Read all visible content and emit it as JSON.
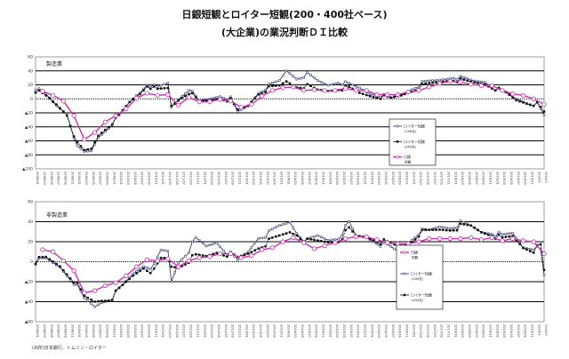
{
  "title_line1": "日銀短観とロイター短観(200・400社ベース)",
  "title_line2": "(大企業)の業況判断ＤＩ比較",
  "source": "(出所)日本銀行、トムソン・ロイター",
  "colors": {
    "reuters200": "#1c2a6b",
    "reuters400": "#111111",
    "tankan": "#cc33aa"
  },
  "x_ticks": [
    "2008/01",
    "2008/03",
    "2008/05",
    "2008/07",
    "2008/09",
    "2008/11",
    "2009/01",
    "2009/03",
    "2009/05",
    "2009/07",
    "2009/09",
    "2009/11",
    "2010/01",
    "2010/03",
    "2010/05",
    "2010/07",
    "2010/09",
    "2010/11",
    "2011/01",
    "2011/03",
    "2011/05",
    "2011/07",
    "2011/09",
    "2011/11",
    "2012/01",
    "2012/03",
    "2012/05",
    "2012/07",
    "2012/09",
    "2012/11",
    "2013/01",
    "2013/03",
    "2013/05",
    "2013/07",
    "2013/09",
    "2013/11",
    "2014/01",
    "2014/03",
    "2014/05",
    "2014/07",
    "2014/09",
    "2014/11",
    "2015/01",
    "2015/03",
    "2015/05",
    "2015/07",
    "2015/09",
    "2015/11",
    "2016/01",
    "2016/03",
    "2016/05",
    "2016/07",
    "2016/09",
    "2016/11",
    "2017/01",
    "2017/03",
    "2017/05",
    "2017/07",
    "2017/09",
    "2017/11",
    "2018/01",
    "2018/03",
    "2018/05",
    "2018/07",
    "2018/09",
    "2018/11",
    "2019/01",
    "2019/03",
    "2019/05",
    "2019/07",
    "2019/09",
    "2019/11",
    "2020/1",
    "2020/3"
  ],
  "chart_data": [
    {
      "type": "line",
      "panel_label": "製造業",
      "x_unit": "months since 2008/01",
      "ylim": [
        -100,
        60
      ],
      "y_ticks": [
        {
          "v": 60,
          "label": "60"
        },
        {
          "v": 40,
          "label": "40"
        },
        {
          "v": 20,
          "label": "20"
        },
        {
          "v": 0,
          "label": "0"
        },
        {
          "v": -20,
          "label": "▲20"
        },
        {
          "v": -40,
          "label": "▲40"
        },
        {
          "v": -60,
          "label": "▲60"
        },
        {
          "v": -80,
          "label": "▲80"
        },
        {
          "v": -100,
          "label": "▲100"
        }
      ],
      "legend": {
        "placement": "lower-right",
        "items": [
          "ロイター短観",
          "(200社)",
          "ロイター短観",
          "(400社)",
          "日銀",
          "短観"
        ]
      },
      "series": [
        {
          "name": "ロイター短観(200社)",
          "key": "reuters200",
          "points": [
            [
              0,
              15
            ],
            [
              3,
              5
            ],
            [
              6,
              -10
            ],
            [
              9,
              -20
            ],
            [
              12,
              -70
            ],
            [
              14,
              -77
            ],
            [
              16,
              -75
            ],
            [
              18,
              -55
            ],
            [
              21,
              -40
            ],
            [
              24,
              -25
            ],
            [
              27,
              -5
            ],
            [
              30,
              10
            ],
            [
              32,
              22
            ],
            [
              35,
              15
            ],
            [
              38,
              22
            ],
            [
              39,
              -12
            ],
            [
              42,
              5
            ],
            [
              44,
              15
            ],
            [
              47,
              -5
            ],
            [
              50,
              0
            ],
            [
              53,
              5
            ],
            [
              56,
              0
            ],
            [
              58,
              -20
            ],
            [
              61,
              -10
            ],
            [
              64,
              10
            ],
            [
              67,
              18
            ],
            [
              70,
              25
            ],
            [
              72,
              40
            ],
            [
              75,
              30
            ],
            [
              78,
              35
            ],
            [
              81,
              25
            ],
            [
              84,
              20
            ],
            [
              87,
              25
            ],
            [
              90,
              20
            ],
            [
              93,
              15
            ],
            [
              96,
              8
            ],
            [
              99,
              5
            ],
            [
              102,
              0
            ],
            [
              105,
              5
            ],
            [
              108,
              15
            ],
            [
              111,
              22
            ],
            [
              114,
              25
            ],
            [
              117,
              28
            ],
            [
              120,
              32
            ],
            [
              123,
              28
            ],
            [
              126,
              25
            ],
            [
              129,
              25
            ],
            [
              132,
              15
            ],
            [
              135,
              8
            ],
            [
              138,
              0
            ],
            [
              141,
              -5
            ],
            [
              144,
              -8
            ],
            [
              146,
              -25
            ]
          ]
        },
        {
          "name": "ロイター短観(400社)",
          "key": "reuters400",
          "points": [
            [
              0,
              12
            ],
            [
              3,
              3
            ],
            [
              6,
              -8
            ],
            [
              9,
              -22
            ],
            [
              12,
              -65
            ],
            [
              14,
              -75
            ],
            [
              16,
              -72
            ],
            [
              18,
              -52
            ],
            [
              21,
              -38
            ],
            [
              24,
              -25
            ],
            [
              27,
              -5
            ],
            [
              30,
              8
            ],
            [
              32,
              20
            ],
            [
              35,
              12
            ],
            [
              38,
              15
            ],
            [
              39,
              -10
            ],
            [
              42,
              3
            ],
            [
              44,
              10
            ],
            [
              47,
              -5
            ],
            [
              50,
              -2
            ],
            [
              53,
              2
            ],
            [
              56,
              -2
            ],
            [
              58,
              -17
            ],
            [
              61,
              -10
            ],
            [
              64,
              8
            ],
            [
              67,
              15
            ],
            [
              70,
              18
            ],
            [
              72,
              25
            ],
            [
              75,
              18
            ],
            [
              78,
              18
            ],
            [
              81,
              12
            ],
            [
              84,
              12
            ],
            [
              87,
              15
            ],
            [
              90,
              15
            ],
            [
              93,
              8
            ],
            [
              96,
              5
            ],
            [
              99,
              3
            ],
            [
              102,
              0
            ],
            [
              105,
              5
            ],
            [
              108,
              12
            ],
            [
              111,
              18
            ],
            [
              114,
              22
            ],
            [
              117,
              25
            ],
            [
              120,
              28
            ],
            [
              123,
              25
            ],
            [
              126,
              23
            ],
            [
              129,
              22
            ],
            [
              132,
              15
            ],
            [
              135,
              8
            ],
            [
              138,
              -2
            ],
            [
              141,
              -5
            ],
            [
              144,
              -8
            ],
            [
              146,
              -20
            ]
          ]
        },
        {
          "name": "日銀短観",
          "key": "tankan",
          "start_month": 2,
          "step_months": 3,
          "values": [
            11,
            5,
            -3,
            -24,
            -58,
            -48,
            -33,
            -24,
            -14,
            1,
            8,
            5,
            6,
            -9,
            2,
            -4,
            -4,
            -1,
            -3,
            -12,
            -8,
            4,
            12,
            16,
            17,
            12,
            13,
            12,
            12,
            15,
            12,
            12,
            6,
            6,
            6,
            10,
            12,
            17,
            22,
            25,
            24,
            21,
            19,
            19,
            12,
            7,
            5,
            0,
            -8
          ]
        }
      ]
    },
    {
      "type": "line",
      "panel_label": "非製造業",
      "x_unit": "months since 2008/01",
      "ylim": [
        -60,
        60
      ],
      "y_ticks": [
        {
          "v": 60,
          "label": "60"
        },
        {
          "v": 40,
          "label": "40"
        },
        {
          "v": 20,
          "label": "20"
        },
        {
          "v": 0,
          "label": "0"
        },
        {
          "v": -20,
          "label": "▲20"
        },
        {
          "v": -40,
          "label": "▲40"
        },
        {
          "v": -60,
          "label": "▲60"
        }
      ],
      "legend": {
        "placement": "lower-right",
        "items": [
          "日銀",
          "短観",
          "ロイター短観",
          "(200社)",
          "ロイター短観",
          "(400社)"
        ]
      },
      "series": [
        {
          "name": "ロイター短観(200社)",
          "key": "reuters200",
          "points": [
            [
              0,
              0
            ],
            [
              3,
              2
            ],
            [
              7,
              -5
            ],
            [
              11,
              -20
            ],
            [
              14,
              -38
            ],
            [
              17,
              -45
            ],
            [
              19,
              -40
            ],
            [
              22,
              -35
            ],
            [
              25,
              -25
            ],
            [
              28,
              -12
            ],
            [
              31,
              -3
            ],
            [
              34,
              -5
            ],
            [
              36,
              10
            ],
            [
              38,
              10
            ],
            [
              39,
              -20
            ],
            [
              41,
              0
            ],
            [
              44,
              12
            ],
            [
              46,
              22
            ],
            [
              49,
              15
            ],
            [
              52,
              20
            ],
            [
              55,
              10
            ],
            [
              58,
              0
            ],
            [
              61,
              10
            ],
            [
              64,
              25
            ],
            [
              67,
              28
            ],
            [
              70,
              35
            ],
            [
              73,
              40
            ],
            [
              75,
              30
            ],
            [
              78,
              20
            ],
            [
              81,
              25
            ],
            [
              84,
              22
            ],
            [
              87,
              25
            ],
            [
              90,
              38
            ],
            [
              92,
              25
            ],
            [
              95,
              25
            ],
            [
              98,
              20
            ],
            [
              101,
              15
            ],
            [
              104,
              10
            ],
            [
              107,
              20
            ],
            [
              110,
              30
            ],
            [
              113,
              30
            ],
            [
              116,
              35
            ],
            [
              119,
              35
            ],
            [
              122,
              38
            ],
            [
              125,
              35
            ],
            [
              128,
              30
            ],
            [
              131,
              30
            ],
            [
              134,
              25
            ],
            [
              137,
              28
            ],
            [
              140,
              15
            ],
            [
              143,
              15
            ],
            [
              145,
              10
            ],
            [
              146,
              -15
            ]
          ]
        },
        {
          "name": "ロイター短観(400社)",
          "key": "reuters400",
          "points": [
            [
              0,
              1
            ],
            [
              3,
              3
            ],
            [
              7,
              -4
            ],
            [
              11,
              -18
            ],
            [
              14,
              -36
            ],
            [
              17,
              -40
            ],
            [
              19,
              -38
            ],
            [
              22,
              -36
            ],
            [
              25,
              -25
            ],
            [
              28,
              -14
            ],
            [
              31,
              -5
            ],
            [
              34,
              -10
            ],
            [
              36,
              2
            ],
            [
              38,
              3
            ],
            [
              39,
              -5
            ],
            [
              41,
              -5
            ],
            [
              44,
              2
            ],
            [
              46,
              5
            ],
            [
              49,
              5
            ],
            [
              52,
              10
            ],
            [
              55,
              8
            ],
            [
              58,
              3
            ],
            [
              61,
              8
            ],
            [
              64,
              15
            ],
            [
              67,
              20
            ],
            [
              70,
              25
            ],
            [
              73,
              30
            ],
            [
              75,
              28
            ],
            [
              78,
              20
            ],
            [
              81,
              20
            ],
            [
              84,
              20
            ],
            [
              87,
              22
            ],
            [
              90,
              32
            ],
            [
              92,
              25
            ],
            [
              95,
              25
            ],
            [
              98,
              22
            ],
            [
              101,
              18
            ],
            [
              104,
              15
            ],
            [
              107,
              18
            ],
            [
              110,
              28
            ],
            [
              113,
              30
            ],
            [
              116,
              32
            ],
            [
              119,
              33
            ],
            [
              122,
              35
            ],
            [
              125,
              35
            ],
            [
              128,
              30
            ],
            [
              131,
              28
            ],
            [
              134,
              22
            ],
            [
              137,
              25
            ],
            [
              140,
              15
            ],
            [
              143,
              12
            ],
            [
              145,
              15
            ],
            [
              146,
              -10
            ]
          ]
        },
        {
          "name": "日銀短観",
          "key": "tankan",
          "start_month": 2,
          "step_months": 3,
          "values": [
            12,
            10,
            1,
            -9,
            -31,
            -29,
            -24,
            -21,
            -14,
            -5,
            2,
            1,
            3,
            -5,
            1,
            4,
            5,
            8,
            8,
            4,
            6,
            12,
            14,
            20,
            24,
            19,
            13,
            16,
            19,
            23,
            25,
            25,
            22,
            19,
            18,
            18,
            20,
            23,
            23,
            23,
            23,
            24,
            22,
            24,
            21,
            23,
            21,
            20,
            8
          ]
        }
      ]
    }
  ]
}
